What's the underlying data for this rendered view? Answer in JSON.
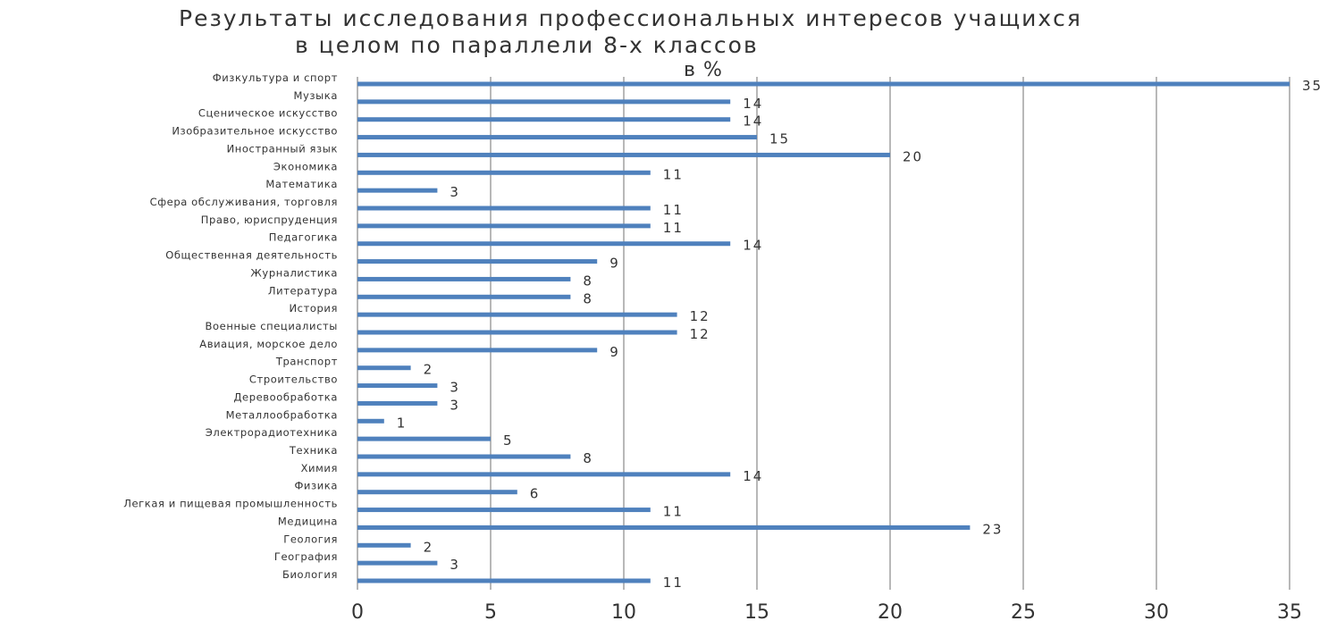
{
  "chart_data": {
    "type": "bar",
    "orientation": "horizontal",
    "title": [
      "Результаты исследования профессиональных интересов учащихся",
      "в целом по параллели  8-х классов",
      "в %"
    ],
    "categories": [
      "Физкультура и спорт",
      "Музыка",
      "Сценическое искусство",
      "Изобразительное искусство",
      "Иностранный язык",
      "Экономика",
      "Математика",
      "Сфера обслуживания, торговля",
      "Право, юриспруденция",
      "Педагогика",
      "Общественная деятельность",
      "Журналистика",
      "Литература",
      "История",
      "Военные специалисты",
      "Авиация, морское дело",
      "Транспорт",
      "Строительство",
      "Деревообработка",
      "Металлообработка",
      "Электрорадиотехника",
      "Техника",
      "Химия",
      "Физика",
      "Легкая и пищевая промышленность",
      "Медицина",
      "Геология",
      "География",
      "Биология"
    ],
    "values": [
      35,
      14,
      14,
      15,
      20,
      11,
      3,
      11,
      11,
      14,
      9,
      8,
      8,
      12,
      12,
      9,
      2,
      3,
      3,
      1,
      5,
      8,
      14,
      6,
      11,
      23,
      2,
      3,
      11
    ],
    "data_labels": [
      "35",
      "14",
      "14",
      "15",
      "20",
      "11",
      "3",
      "11",
      "11",
      "14",
      "9",
      "8",
      "8",
      "12",
      "12",
      "9",
      "2",
      "3",
      "3",
      "1",
      "5",
      "8",
      "14",
      "6",
      "11",
      "23",
      "2",
      "3",
      "11"
    ],
    "xlim": [
      0,
      35
    ],
    "x_ticks": [
      0,
      5,
      10,
      15,
      20,
      25,
      30,
      35
    ],
    "x_tick_labels": [
      "0",
      "5",
      "10",
      "15",
      "20",
      "25",
      "30",
      "35"
    ],
    "grid": "vertical",
    "legend": "none",
    "colors": {
      "bar": "#4f81bd",
      "grid": "#a6a6a6",
      "axis": "#868686",
      "text": "#333333"
    }
  }
}
